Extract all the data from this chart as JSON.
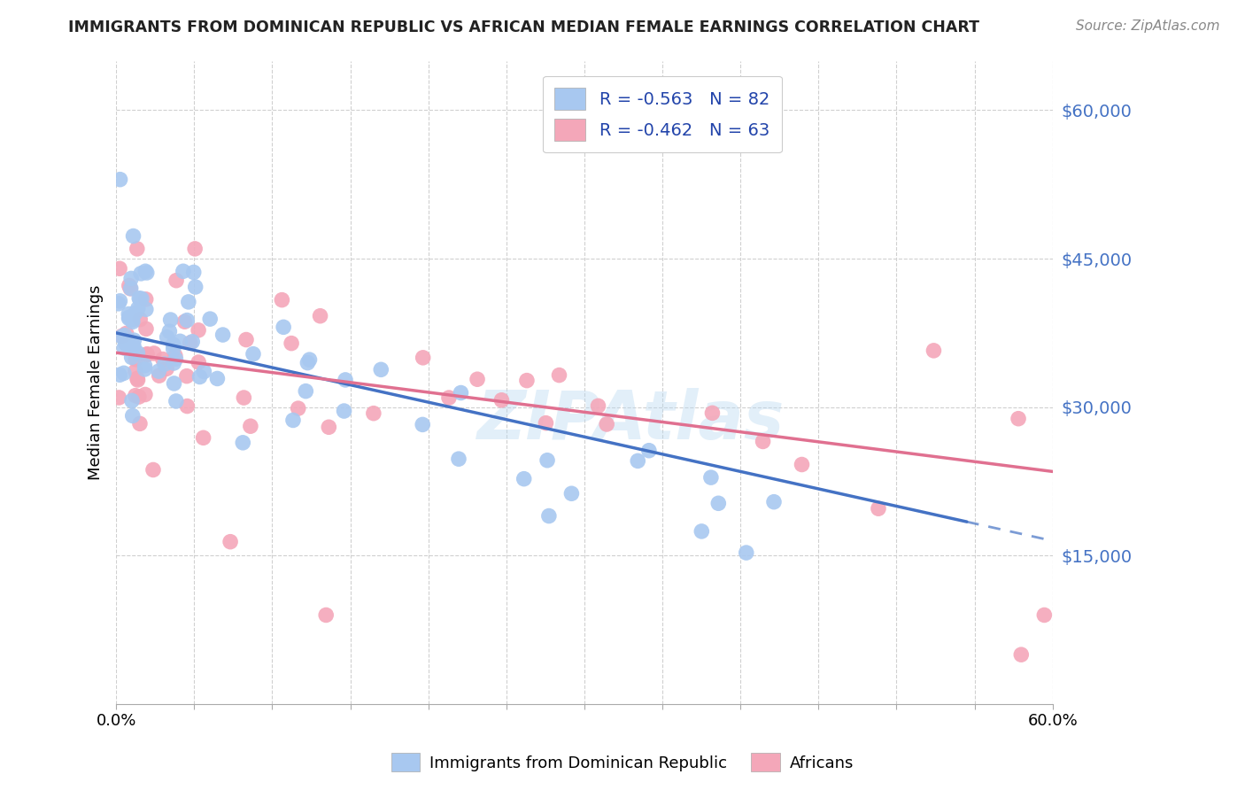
{
  "title": "IMMIGRANTS FROM DOMINICAN REPUBLIC VS AFRICAN MEDIAN FEMALE EARNINGS CORRELATION CHART",
  "source": "Source: ZipAtlas.com",
  "ylabel": "Median Female Earnings",
  "y_ticks": [
    15000,
    30000,
    45000,
    60000
  ],
  "y_tick_labels": [
    "$15,000",
    "$30,000",
    "$45,000",
    "$60,000"
  ],
  "x_min": 0.0,
  "x_max": 0.6,
  "y_min": 0,
  "y_max": 65000,
  "blue_R": "-0.563",
  "blue_N": "82",
  "pink_R": "-0.462",
  "pink_N": "63",
  "blue_color": "#a8c8f0",
  "blue_line_color": "#4472c4",
  "pink_color": "#f4a7b9",
  "pink_line_color": "#e07090",
  "legend_label_blue": "Immigrants from Dominican Republic",
  "legend_label_pink": "Africans",
  "watermark": "ZIPAtlas",
  "title_color": "#222222",
  "source_color": "#888888",
  "grid_color": "#d0d0d0",
  "right_axis_color": "#4472c4",
  "blue_line_intercept": 37500,
  "blue_line_slope": -35000,
  "blue_line_x_solid_end": 0.545,
  "blue_line_x_dash_end": 0.6,
  "pink_line_intercept": 35500,
  "pink_line_slope": -20000,
  "pink_line_x_end": 0.6
}
